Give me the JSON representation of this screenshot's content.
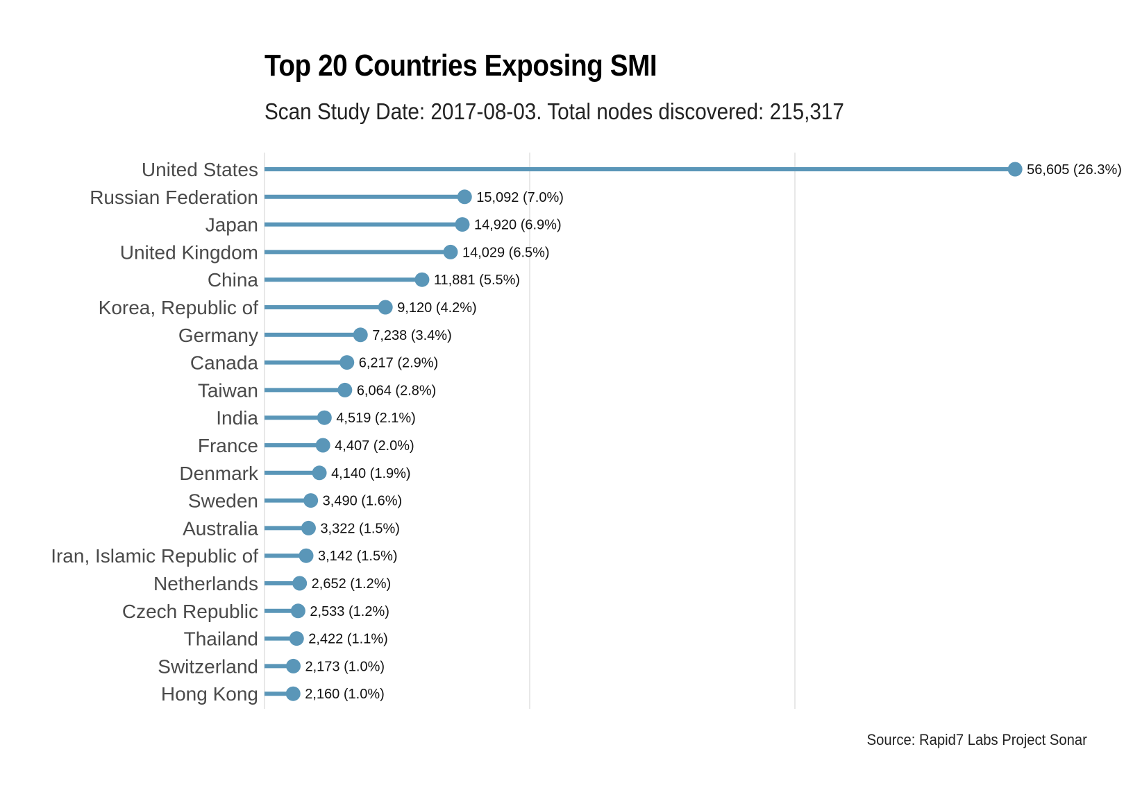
{
  "chart_data": {
    "type": "bar",
    "style": "lollipop, horizontal",
    "title": "Top 20 Countries Exposing SMI",
    "subtitle": "Scan Study Date: 2017-08-03. Total nodes discovered: 215,317",
    "caption": "Source: Rapid7 Labs Project Sonar",
    "xlabel": "",
    "ylabel": "",
    "xlim": [
      0,
      60000
    ],
    "grid": "vertical gridlines",
    "color": "#5a96b8",
    "categories": [
      "United States",
      "Russian Federation",
      "Japan",
      "United Kingdom",
      "China",
      "Korea, Republic of",
      "Germany",
      "Canada",
      "Taiwan",
      "India",
      "France",
      "Denmark",
      "Sweden",
      "Australia",
      "Iran, Islamic Republic of",
      "Netherlands",
      "Czech Republic",
      "Thailand",
      "Switzerland",
      "Hong Kong"
    ],
    "values": [
      56605,
      15092,
      14920,
      14029,
      11881,
      9120,
      7238,
      6217,
      6064,
      4519,
      4407,
      4140,
      3490,
      3322,
      3142,
      2652,
      2533,
      2422,
      2173,
      2160
    ],
    "labels": [
      "56,605 (26.3%)",
      "15,092 (7.0%)",
      "14,920 (6.9%)",
      "14,029 (6.5%)",
      "11,881 (5.5%)",
      "9,120 (4.2%)",
      "7,238 (3.4%)",
      "6,217 (2.9%)",
      "6,064 (2.8%)",
      "4,519 (2.1%)",
      "4,407 (2.0%)",
      "4,140 (1.9%)",
      "3,490 (1.6%)",
      "3,322 (1.5%)",
      "3,142 (1.5%)",
      "2,652 (1.2%)",
      "2,533 (1.2%)",
      "2,422 (1.1%)",
      "2,173 (1.0%)",
      "2,160 (1.0%)"
    ]
  }
}
